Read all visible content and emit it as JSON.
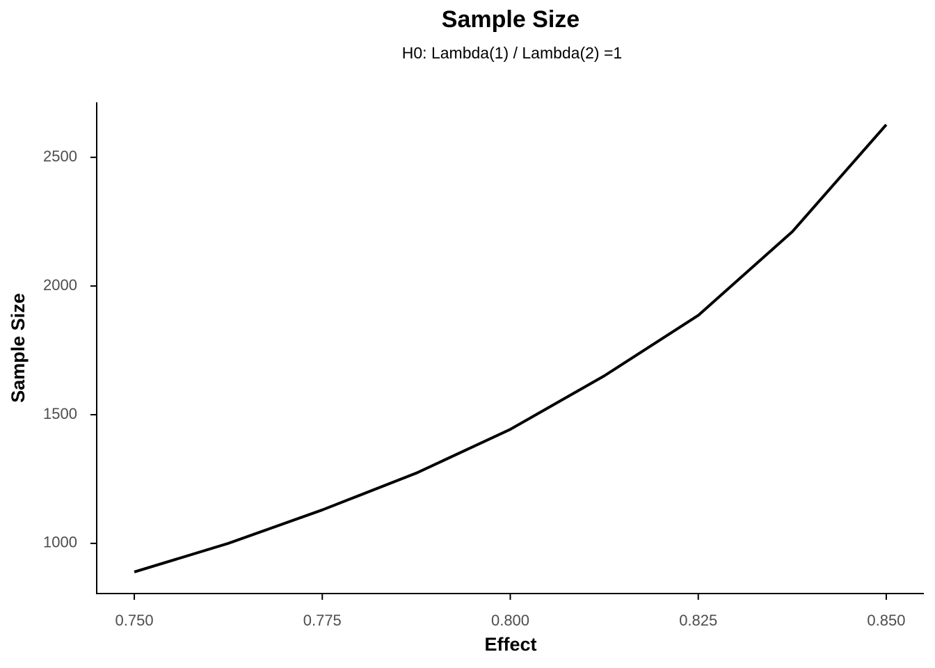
{
  "chart_data": {
    "type": "line",
    "title": "Sample Size",
    "subtitle": "H0: Lambda(1) / Lambda(2) =1",
    "x_label": "Effect",
    "y_label": "Sample Size",
    "x": [
      0.75,
      0.7625,
      0.775,
      0.7875,
      0.8,
      0.8125,
      0.825,
      0.8375,
      0.85
    ],
    "series": [
      {
        "color": "#000000",
        "values": [
          889,
          1000,
          1130,
          1273,
          1443,
          1651,
          1886,
          2211,
          2627
        ]
      }
    ],
    "xlim": [
      0.745,
      0.855
    ],
    "ylim": [
      805,
      2714
    ],
    "xticks": [
      {
        "value": 0.75,
        "label": "0.750"
      },
      {
        "value": 0.775,
        "label": "0.775"
      },
      {
        "value": 0.8,
        "label": "0.800"
      },
      {
        "value": 0.825,
        "label": "0.825"
      },
      {
        "value": 0.85,
        "label": "0.850"
      }
    ],
    "yticks": [
      1000,
      1500,
      2000,
      2500
    ],
    "grid": false
  }
}
